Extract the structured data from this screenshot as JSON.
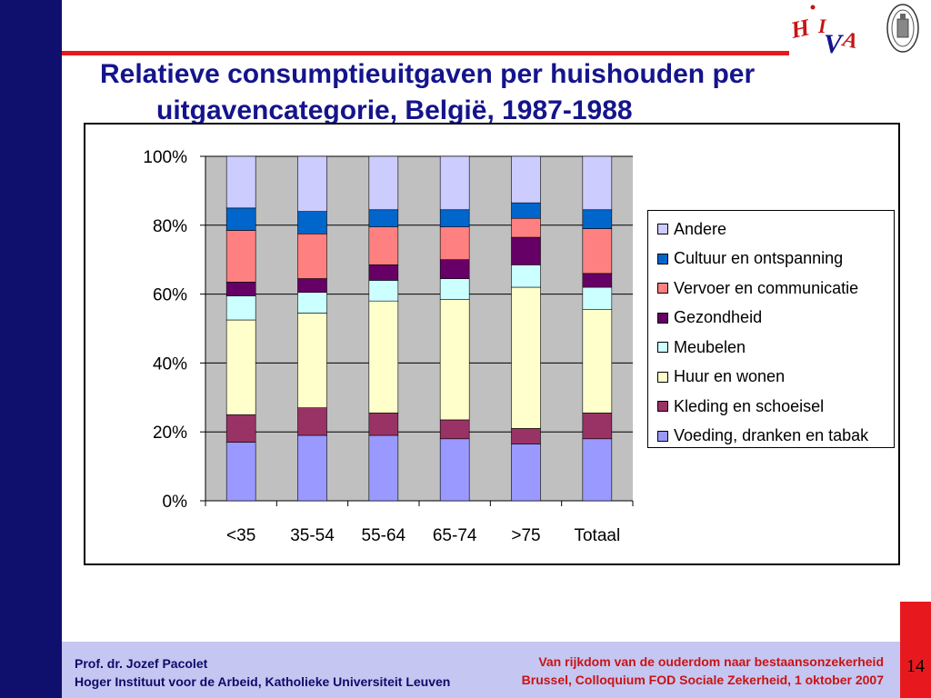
{
  "slide": {
    "title_line1": "Relatieve consumptieuitgaven per huishouden per",
    "title_line2": "uitgavencategorie, België, 1987-1988",
    "page_number": "14",
    "logo_text": "HIVA"
  },
  "footer": {
    "author": "Prof. dr. Jozef Pacolet",
    "institute": "Hoger Instituut voor de Arbeid, Katholieke Universiteit Leuven",
    "talk_title": "Van rijkdom van de ouderdom naar bestaansonzekerheid",
    "event": "Brussel, Colloquium FOD Sociale Zekerheid, 1 oktober 2007"
  },
  "colors": {
    "brand_navy": "#0f0f6e",
    "accent_red": "#e8191e",
    "title_blue": "#14148c",
    "plot_background": "#c0c0c0"
  },
  "chart_data": {
    "type": "bar",
    "stacked": "percent",
    "categories": [
      "<35",
      "35-54",
      "55-64",
      "65-74",
      ">75",
      "Totaal"
    ],
    "y_ticks": [
      "0%",
      "20%",
      "40%",
      "60%",
      "80%",
      "100%"
    ],
    "ylim": [
      0,
      100
    ],
    "grid": true,
    "legend_position": "right",
    "series": [
      {
        "name": "Voeding, dranken en tabak",
        "color": "#9999ff",
        "values": [
          17,
          19,
          19,
          18,
          16.5,
          18
        ]
      },
      {
        "name": "Kleding en schoeisel",
        "color": "#993366",
        "values": [
          8,
          8,
          6.5,
          5.5,
          4.5,
          7.5
        ]
      },
      {
        "name": "Huur en wonen",
        "color": "#ffffcc",
        "values": [
          27.5,
          27.5,
          32.5,
          35,
          41,
          30
        ]
      },
      {
        "name": "Meubelen",
        "color": "#ccffff",
        "values": [
          7,
          6,
          6,
          6,
          6.5,
          6.5
        ]
      },
      {
        "name": "Gezondheid",
        "color": "#660066",
        "values": [
          4,
          4,
          4.5,
          5.5,
          8,
          4
        ]
      },
      {
        "name": "Vervoer en communicatie",
        "color": "#ff8080",
        "values": [
          15,
          13,
          11,
          9.5,
          5.5,
          13
        ]
      },
      {
        "name": "Cultuur en ontspanning",
        "color": "#0066cc",
        "values": [
          6.5,
          6.5,
          5,
          5,
          4.5,
          5.5
        ]
      },
      {
        "name": "Andere",
        "color": "#ccccff",
        "values": [
          15,
          16,
          15.5,
          15.5,
          13.5,
          15.5
        ]
      }
    ]
  }
}
